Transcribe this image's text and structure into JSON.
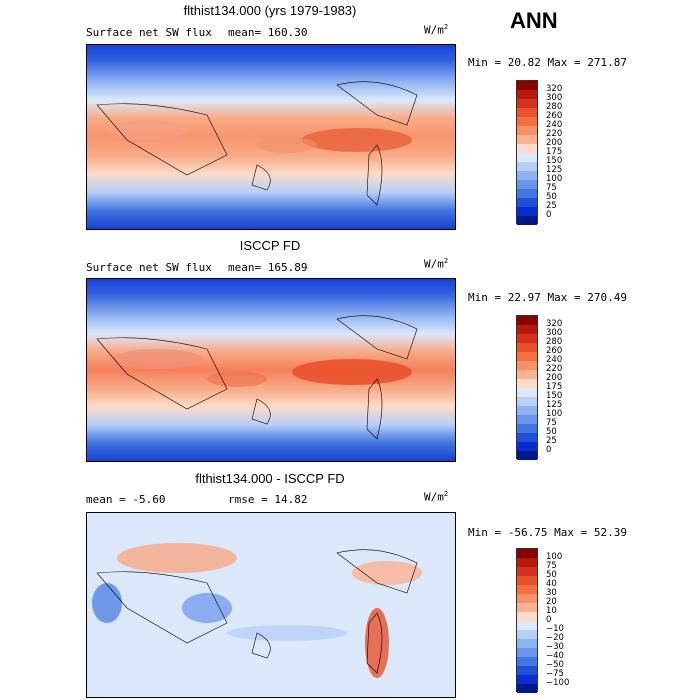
{
  "season": "ANN",
  "units": {
    "base": "W/m",
    "exp": "2"
  },
  "panels": [
    {
      "title": "flthist134.000 (yrs 1979-1983)",
      "left_label": "Surface net SW flux",
      "stat_label": "mean= 160.30",
      "minmax": "Min =  20.82 Max = 271.87",
      "colorbar": {
        "labels": [
          "320",
          "300",
          "280",
          "260",
          "240",
          "220",
          "200",
          "175",
          "150",
          "125",
          "100",
          "75",
          "50",
          "25",
          "0"
        ],
        "colors": [
          "#8b0000",
          "#b51a0b",
          "#d7301f",
          "#e8512e",
          "#f4703f",
          "#f8906a",
          "#fbb293",
          "#fddbc7",
          "#dbe7fb",
          "#b7cff7",
          "#8fb2f1",
          "#6a94ea",
          "#4176e0",
          "#2050d8",
          "#0a2bd0",
          "#001a8c"
        ]
      }
    },
    {
      "title": "ISCCP FD",
      "left_label": "Surface net SW flux",
      "stat_label": "mean= 165.89",
      "minmax": "Min =  22.97 Max = 270.49",
      "colorbar": {
        "labels": [
          "320",
          "300",
          "280",
          "260",
          "240",
          "220",
          "200",
          "175",
          "150",
          "125",
          "100",
          "75",
          "50",
          "25",
          "0"
        ],
        "colors": [
          "#8b0000",
          "#b51a0b",
          "#d7301f",
          "#e8512e",
          "#f4703f",
          "#f8906a",
          "#fbb293",
          "#fddbc7",
          "#dbe7fb",
          "#b7cff7",
          "#8fb2f1",
          "#6a94ea",
          "#4176e0",
          "#2050d8",
          "#0a2bd0",
          "#001a8c"
        ]
      }
    },
    {
      "title": "flthist134.000 - ISCCP FD",
      "left_label": "mean =   -5.60",
      "stat_label": "rmse =  14.82",
      "minmax": "Min = -56.75 Max =  52.39",
      "colorbar": {
        "labels": [
          "100",
          "75",
          "50",
          "40",
          "30",
          "20",
          "10",
          "0",
          "−10",
          "−20",
          "−30",
          "−40",
          "−50",
          "−75",
          "−100"
        ],
        "colors": [
          "#8b0000",
          "#b51a0b",
          "#d7301f",
          "#e8512e",
          "#f4703f",
          "#f8906a",
          "#fbb293",
          "#fddbc7",
          "#dbe7fb",
          "#b7cff7",
          "#8fb2f1",
          "#6a94ea",
          "#4176e0",
          "#2050d8",
          "#0a2bd0",
          "#001a8c"
        ]
      }
    }
  ]
}
